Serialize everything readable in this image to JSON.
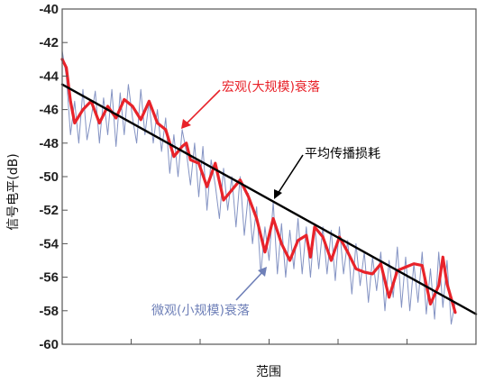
{
  "chart_data": {
    "type": "line",
    "title": "",
    "xlabel": "范围",
    "ylabel": "信号电平(dB)",
    "x_range": [
      0,
      1
    ],
    "ylim": [
      -60,
      -40
    ],
    "y_ticks": [
      -40,
      -42,
      -44,
      -46,
      -48,
      -50,
      -52,
      -54,
      -56,
      -58,
      -60
    ],
    "grid": false,
    "annotations": {
      "macro": "宏观(大规模)衰落",
      "path_loss": "平均传播损耗",
      "micro": "微观(小规模)衰落"
    },
    "colors": {
      "macro": "#e8232a",
      "micro": "#6f80b8",
      "path_loss": "#000000",
      "axis": "#555555"
    },
    "series": [
      {
        "role": "path_loss",
        "x": [
          0.0,
          1.0
        ],
        "y": [
          -44.5,
          -58.2
        ]
      },
      {
        "role": "macro",
        "x": [
          0.0,
          0.01,
          0.02,
          0.03,
          0.05,
          0.07,
          0.09,
          0.11,
          0.13,
          0.15,
          0.17,
          0.19,
          0.21,
          0.23,
          0.25,
          0.27,
          0.29,
          0.3,
          0.31,
          0.33,
          0.35,
          0.37,
          0.39,
          0.41,
          0.43,
          0.45,
          0.47,
          0.49,
          0.51,
          0.53,
          0.55,
          0.57,
          0.59,
          0.6,
          0.61,
          0.63,
          0.65,
          0.67,
          0.69,
          0.71,
          0.73,
          0.75,
          0.77,
          0.79,
          0.81,
          0.83,
          0.85,
          0.87,
          0.89,
          0.91,
          0.92,
          0.93,
          0.95
        ],
        "y": [
          -43.0,
          -43.5,
          -45.5,
          -46.8,
          -46.0,
          -45.5,
          -46.8,
          -45.8,
          -46.5,
          -45.4,
          -45.8,
          -46.6,
          -45.5,
          -46.8,
          -47.2,
          -48.8,
          -48.2,
          -48.0,
          -49.0,
          -49.2,
          -50.6,
          -49.2,
          -51.4,
          -50.8,
          -50.2,
          -51.2,
          -52.5,
          -54.5,
          -52.5,
          -54.0,
          -55.0,
          -53.8,
          -53.5,
          -54.8,
          -53.0,
          -53.6,
          -55.0,
          -53.6,
          -54.5,
          -55.5,
          -55.7,
          -55.8,
          -55.2,
          -57.2,
          -55.6,
          -55.4,
          -55.2,
          -55.3,
          -57.6,
          -56.5,
          -54.8,
          -56.4,
          -58.1
        ]
      },
      {
        "role": "micro",
        "x": [
          0.0,
          0.01,
          0.02,
          0.03,
          0.04,
          0.05,
          0.06,
          0.07,
          0.08,
          0.09,
          0.1,
          0.11,
          0.12,
          0.13,
          0.14,
          0.15,
          0.16,
          0.17,
          0.18,
          0.19,
          0.2,
          0.21,
          0.22,
          0.23,
          0.24,
          0.25,
          0.26,
          0.27,
          0.28,
          0.29,
          0.3,
          0.31,
          0.32,
          0.33,
          0.34,
          0.35,
          0.36,
          0.37,
          0.38,
          0.39,
          0.4,
          0.41,
          0.42,
          0.43,
          0.44,
          0.45,
          0.46,
          0.47,
          0.48,
          0.49,
          0.5,
          0.51,
          0.52,
          0.53,
          0.54,
          0.55,
          0.56,
          0.57,
          0.58,
          0.59,
          0.6,
          0.61,
          0.62,
          0.63,
          0.64,
          0.65,
          0.66,
          0.67,
          0.68,
          0.69,
          0.7,
          0.71,
          0.72,
          0.73,
          0.74,
          0.75,
          0.76,
          0.77,
          0.78,
          0.79,
          0.8,
          0.81,
          0.82,
          0.83,
          0.84,
          0.85,
          0.86,
          0.87,
          0.88,
          0.89,
          0.9,
          0.91,
          0.92,
          0.93,
          0.94,
          0.95
        ],
        "y": [
          -42.5,
          -44.0,
          -47.5,
          -45.5,
          -48.0,
          -44.8,
          -47.8,
          -46.5,
          -44.9,
          -48.0,
          -45.3,
          -47.5,
          -44.8,
          -48.2,
          -45.0,
          -47.5,
          -44.5,
          -46.5,
          -48.0,
          -44.8,
          -47.5,
          -45.5,
          -48.0,
          -46.0,
          -48.5,
          -46.5,
          -49.8,
          -47.5,
          -50.0,
          -47.2,
          -48.5,
          -50.5,
          -48.0,
          -51.2,
          -48.2,
          -52.0,
          -49.0,
          -50.5,
          -52.5,
          -49.5,
          -52.0,
          -50.0,
          -53.0,
          -50.0,
          -53.5,
          -51.0,
          -54.0,
          -51.8,
          -55.8,
          -53.0,
          -55.0,
          -51.5,
          -55.8,
          -52.8,
          -56.0,
          -53.2,
          -55.5,
          -52.5,
          -55.8,
          -53.0,
          -56.0,
          -52.8,
          -55.5,
          -53.0,
          -55.8,
          -53.2,
          -56.2,
          -53.0,
          -55.8,
          -53.8,
          -57.0,
          -54.0,
          -56.5,
          -54.5,
          -57.5,
          -54.8,
          -56.8,
          -54.5,
          -58.0,
          -55.0,
          -57.2,
          -54.2,
          -57.8,
          -54.8,
          -58.0,
          -55.2,
          -57.5,
          -54.5,
          -58.2,
          -55.5,
          -58.5,
          -54.5,
          -57.8,
          -55.0,
          -58.8,
          -57.5
        ]
      }
    ]
  }
}
